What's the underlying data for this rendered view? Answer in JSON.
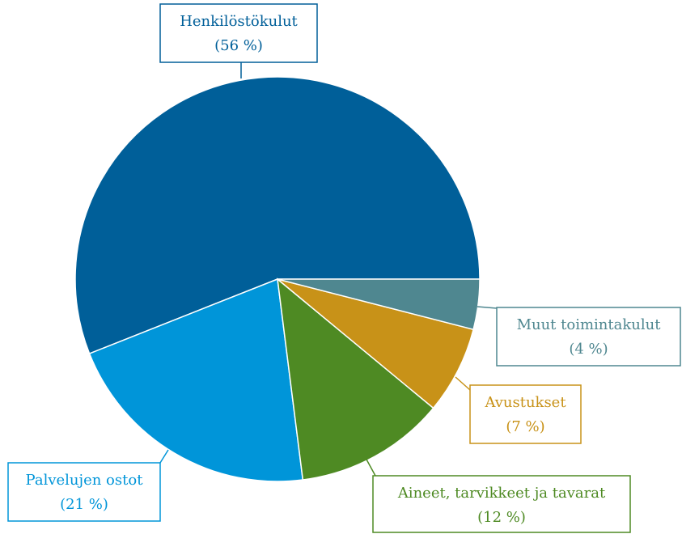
{
  "chart_data": {
    "type": "pie",
    "categories": [
      "Henkilöstökulut",
      "Palvelujen ostot",
      "Aineet, tarvikkeet ja tavarat",
      "Avustukset",
      "Muut toimintakulut"
    ],
    "values": [
      56,
      21,
      12,
      7,
      4
    ],
    "value_labels": [
      "(56 %)",
      "(21 %)",
      "(12 %)",
      "(7 %)",
      "(4 %)"
    ],
    "colors": [
      "#005f99",
      "#0095d9",
      "#4e8a23",
      "#c89218",
      "#4f8790"
    ]
  }
}
